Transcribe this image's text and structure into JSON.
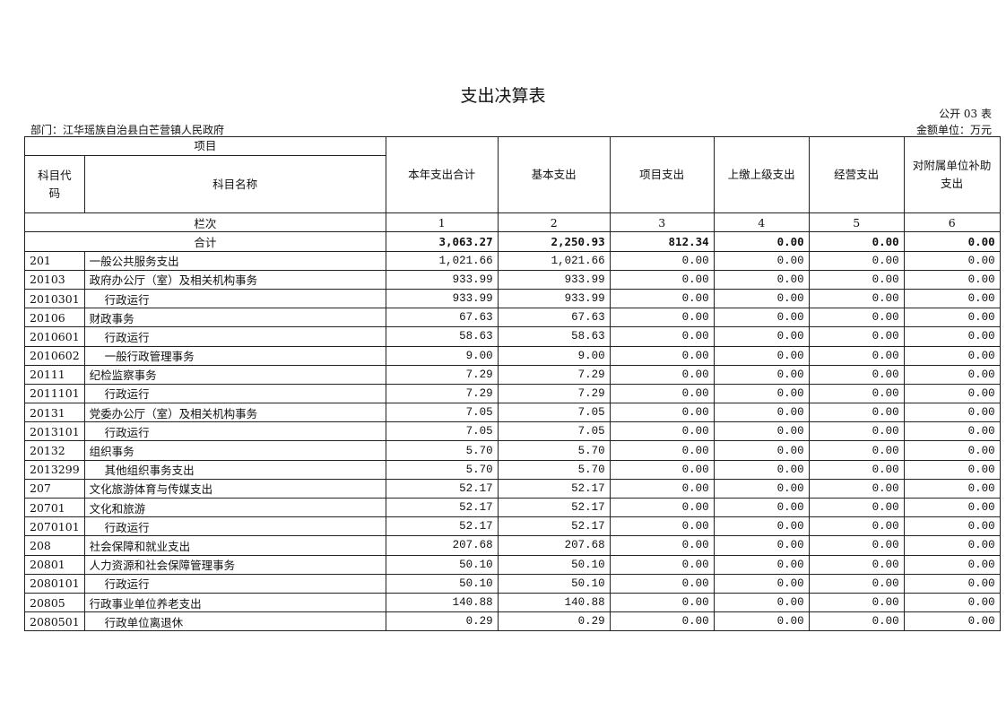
{
  "title": "支出决算表",
  "form_no": "公开 03 表",
  "department": "部门：江华瑶族自治县白芒营镇人民政府",
  "unit": "金额单位：万元",
  "headers": {
    "item": "项目",
    "code": "科目代码",
    "name": "科目名称",
    "cols": [
      "本年支出合计",
      "基本支出",
      "项目支出",
      "上缴上级支出",
      "经营支出",
      "对附属单位补助支出"
    ],
    "seq_label": "栏次",
    "seq": [
      "1",
      "2",
      "3",
      "4",
      "5",
      "6"
    ]
  },
  "total": {
    "label": "合计",
    "values": [
      "3,063.27",
      "2,250.93",
      "812.34",
      "0.00",
      "0.00",
      "0.00"
    ]
  },
  "rows": [
    {
      "code": "201",
      "name": "一般公共服务支出",
      "indent": false,
      "values": [
        "1,021.66",
        "1,021.66",
        "0.00",
        "0.00",
        "0.00",
        "0.00"
      ]
    },
    {
      "code": "20103",
      "name": "政府办公厅（室）及相关机构事务",
      "indent": false,
      "values": [
        "933.99",
        "933.99",
        "0.00",
        "0.00",
        "0.00",
        "0.00"
      ]
    },
    {
      "code": "2010301",
      "name": "行政运行",
      "indent": true,
      "values": [
        "933.99",
        "933.99",
        "0.00",
        "0.00",
        "0.00",
        "0.00"
      ]
    },
    {
      "code": "20106",
      "name": "财政事务",
      "indent": false,
      "values": [
        "67.63",
        "67.63",
        "0.00",
        "0.00",
        "0.00",
        "0.00"
      ]
    },
    {
      "code": "2010601",
      "name": "行政运行",
      "indent": true,
      "values": [
        "58.63",
        "58.63",
        "0.00",
        "0.00",
        "0.00",
        "0.00"
      ]
    },
    {
      "code": "2010602",
      "name": "一般行政管理事务",
      "indent": true,
      "values": [
        "9.00",
        "9.00",
        "0.00",
        "0.00",
        "0.00",
        "0.00"
      ]
    },
    {
      "code": "20111",
      "name": "纪检监察事务",
      "indent": false,
      "values": [
        "7.29",
        "7.29",
        "0.00",
        "0.00",
        "0.00",
        "0.00"
      ]
    },
    {
      "code": "2011101",
      "name": "行政运行",
      "indent": true,
      "values": [
        "7.29",
        "7.29",
        "0.00",
        "0.00",
        "0.00",
        "0.00"
      ]
    },
    {
      "code": "20131",
      "name": "党委办公厅（室）及相关机构事务",
      "indent": false,
      "values": [
        "7.05",
        "7.05",
        "0.00",
        "0.00",
        "0.00",
        "0.00"
      ]
    },
    {
      "code": "2013101",
      "name": "行政运行",
      "indent": true,
      "values": [
        "7.05",
        "7.05",
        "0.00",
        "0.00",
        "0.00",
        "0.00"
      ]
    },
    {
      "code": "20132",
      "name": "组织事务",
      "indent": false,
      "values": [
        "5.70",
        "5.70",
        "0.00",
        "0.00",
        "0.00",
        "0.00"
      ]
    },
    {
      "code": "2013299",
      "name": "其他组织事务支出",
      "indent": true,
      "values": [
        "5.70",
        "5.70",
        "0.00",
        "0.00",
        "0.00",
        "0.00"
      ]
    },
    {
      "code": "207",
      "name": "文化旅游体育与传媒支出",
      "indent": false,
      "values": [
        "52.17",
        "52.17",
        "0.00",
        "0.00",
        "0.00",
        "0.00"
      ]
    },
    {
      "code": "20701",
      "name": "文化和旅游",
      "indent": false,
      "values": [
        "52.17",
        "52.17",
        "0.00",
        "0.00",
        "0.00",
        "0.00"
      ]
    },
    {
      "code": "2070101",
      "name": "行政运行",
      "indent": true,
      "values": [
        "52.17",
        "52.17",
        "0.00",
        "0.00",
        "0.00",
        "0.00"
      ]
    },
    {
      "code": "208",
      "name": "社会保障和就业支出",
      "indent": false,
      "values": [
        "207.68",
        "207.68",
        "0.00",
        "0.00",
        "0.00",
        "0.00"
      ]
    },
    {
      "code": "20801",
      "name": "人力资源和社会保障管理事务",
      "indent": false,
      "values": [
        "50.10",
        "50.10",
        "0.00",
        "0.00",
        "0.00",
        "0.00"
      ]
    },
    {
      "code": "2080101",
      "name": "行政运行",
      "indent": true,
      "values": [
        "50.10",
        "50.10",
        "0.00",
        "0.00",
        "0.00",
        "0.00"
      ]
    },
    {
      "code": "20805",
      "name": "行政事业单位养老支出",
      "indent": false,
      "values": [
        "140.88",
        "140.88",
        "0.00",
        "0.00",
        "0.00",
        "0.00"
      ]
    },
    {
      "code": "2080501",
      "name": "行政单位离退休",
      "indent": true,
      "values": [
        "0.29",
        "0.29",
        "0.00",
        "0.00",
        "0.00",
        "0.00"
      ]
    }
  ]
}
